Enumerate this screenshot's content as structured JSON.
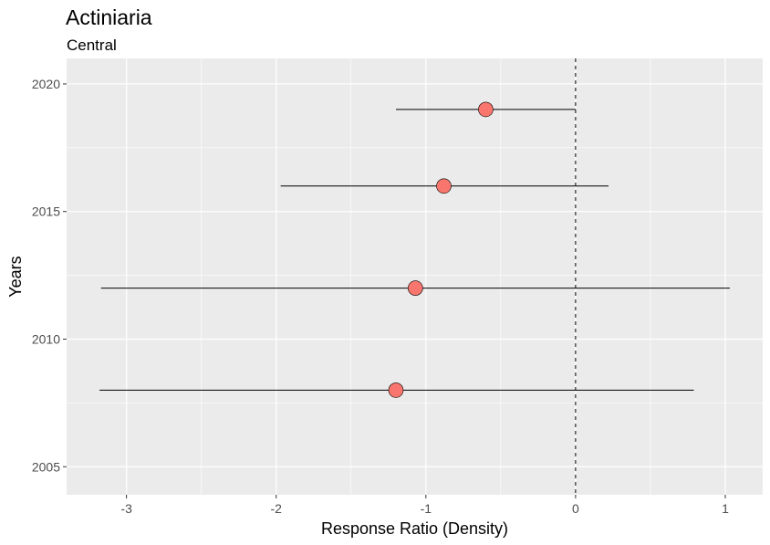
{
  "chart_data": {
    "type": "scatter",
    "title": "Actiniaria",
    "subtitle": "Central",
    "xlabel": "Response Ratio (Density)",
    "ylabel": "Years",
    "xlim": [
      -3.4,
      1.25
    ],
    "ylim": [
      2003.9,
      2021.0
    ],
    "x_ticks": [
      -3,
      -2,
      -1,
      0,
      1
    ],
    "y_ticks": [
      2005,
      2010,
      2015,
      2020
    ],
    "reference_line_x": 0,
    "grid": true,
    "point_color": "#F8766D",
    "panel_color": "#EBEBEB",
    "points": [
      {
        "year": 2019,
        "value": -0.6,
        "low": -1.2,
        "high": 0.0
      },
      {
        "year": 2016,
        "value": -0.88,
        "low": -1.97,
        "high": 0.22
      },
      {
        "year": 2012,
        "value": -1.07,
        "low": -3.17,
        "high": 1.03
      },
      {
        "year": 2008,
        "value": -1.2,
        "low": -3.18,
        "high": 0.79
      }
    ]
  }
}
